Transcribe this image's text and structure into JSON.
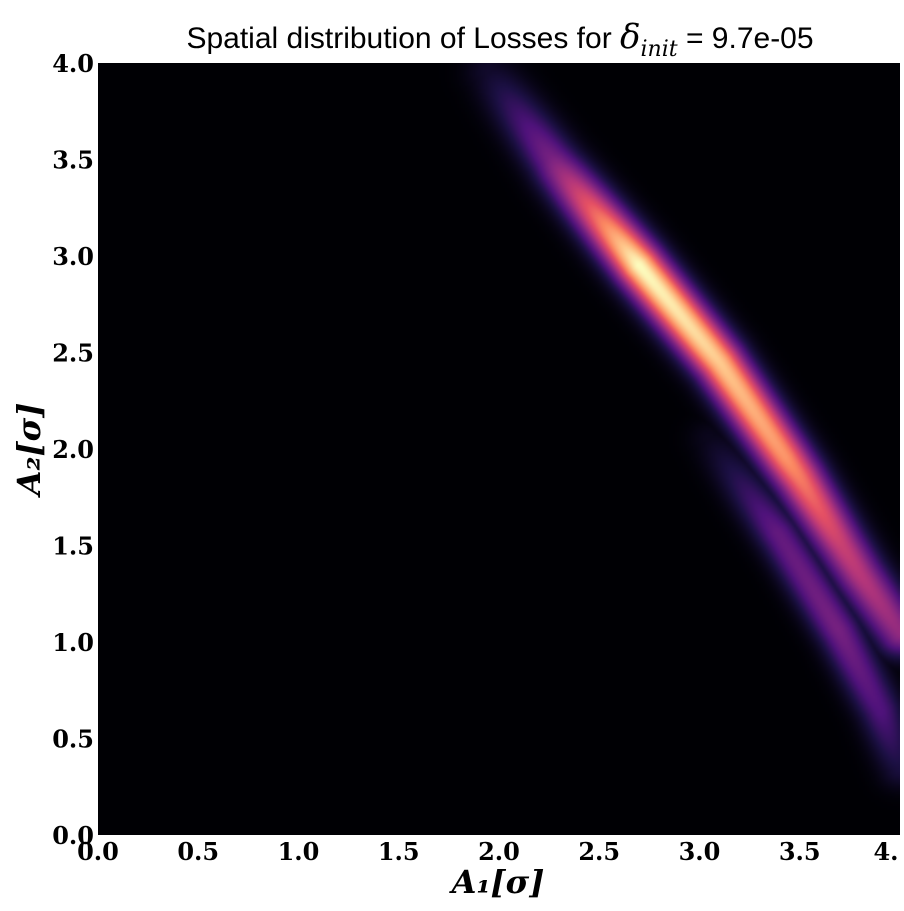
{
  "chart_data": {
    "type": "heatmap",
    "title_prefix": "Spatial distribution of Losses for ",
    "title_symbol": "δ",
    "title_subscript": "init",
    "title_suffix": " = 9.7e-05",
    "xlabel": "A₁[σ]",
    "ylabel": "A₂[σ]",
    "xlim": [
      0.0,
      4.0
    ],
    "ylim": [
      0.0,
      4.0
    ],
    "x_ticks": [
      "0.0",
      "0.5",
      "1.0",
      "1.5",
      "2.0",
      "2.5",
      "3.0",
      "3.5",
      "4."
    ],
    "y_ticks": [
      "0.0",
      "0.5",
      "1.0",
      "1.5",
      "2.0",
      "2.5",
      "3.0",
      "3.5",
      "4.0"
    ],
    "colormap": "magma",
    "grid": false,
    "bands": [
      {
        "name_hidden": true,
        "path": [
          [
            1.95,
            3.95
          ],
          [
            2.3,
            3.45
          ],
          [
            2.7,
            2.95
          ],
          [
            3.1,
            2.45
          ],
          [
            3.5,
            1.85
          ],
          [
            3.8,
            1.35
          ],
          [
            4.0,
            1.05
          ]
        ],
        "peak_along": [
          [
            0.0,
            0.08
          ],
          [
            0.15,
            0.35
          ],
          [
            0.35,
            1.0
          ],
          [
            0.5,
            0.92
          ],
          [
            0.7,
            0.78
          ],
          [
            0.85,
            0.55
          ],
          [
            1.0,
            0.42
          ]
        ],
        "width": 0.085
      },
      {
        "name_hidden": true,
        "path": [
          [
            3.05,
            2.05
          ],
          [
            3.4,
            1.55
          ],
          [
            3.7,
            1.05
          ],
          [
            3.9,
            0.65
          ],
          [
            4.0,
            0.35
          ]
        ],
        "peak_along": [
          [
            0.0,
            0.05
          ],
          [
            0.3,
            0.3
          ],
          [
            0.6,
            0.35
          ],
          [
            0.85,
            0.25
          ],
          [
            1.0,
            0.12
          ]
        ],
        "width": 0.075
      }
    ]
  }
}
